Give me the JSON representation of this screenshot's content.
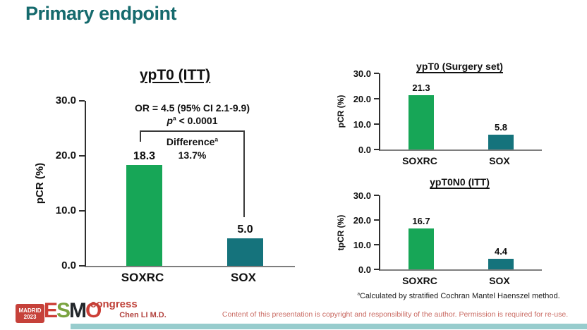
{
  "slide": {
    "title": "Primary endpoint",
    "author": "Chen LI M.D.",
    "copyright": "Content of this presentation is copyright and responsibility of the author. Permission is required for re-use.",
    "footnote_sup": "a",
    "footnote_text": "Calculated by stratified Cochran Mantel Haenszel method.",
    "logo": {
      "location": "MADRID",
      "year": "2023",
      "letters": [
        "E",
        "S",
        "M",
        "O"
      ],
      "congress": "congress"
    }
  },
  "colors": {
    "title_teal": "#156a6d",
    "bar_soxrc_green": "#17a657",
    "bar_sox_teal": "#15737c",
    "red_text": "#b2423e",
    "copyright_red": "#c96a62",
    "bottom_bar_teal": "#2f9a9c"
  },
  "annotation": {
    "or_line": "OR = 4.5 (95% CI 2.1-9.9)",
    "p_italic": "p",
    "p_sup": "a",
    "p_value": "< 0.0001",
    "difference_label": "Difference",
    "difference_sup": "a",
    "difference_value": "13.7%"
  },
  "chart_data": [
    {
      "type": "bar",
      "title": "ypT0 (ITT)",
      "categories": [
        "SOXRC",
        "SOX"
      ],
      "values": [
        18.3,
        5.0
      ],
      "value_labels": [
        "18.3",
        "5.0"
      ],
      "ylabel": "pCR (%)",
      "ylim": [
        0,
        30
      ],
      "yticks": [
        "30.0",
        "20.0",
        "10.0",
        "0.0"
      ],
      "bar_colors": [
        "#17a657",
        "#15737c"
      ],
      "grid": false,
      "annotations": [
        "OR = 4.5 (95% CI 2.1-9.9)",
        "pᵃ < 0.0001",
        "Differenceᵃ 13.7%"
      ]
    },
    {
      "type": "bar",
      "title": "ypT0 (Surgery set)",
      "categories": [
        "SOXRC",
        "SOX"
      ],
      "values": [
        21.3,
        5.8
      ],
      "value_labels": [
        "21.3",
        "5.8"
      ],
      "ylabel": "pCR (%)",
      "ylim": [
        0,
        30
      ],
      "yticks": [
        "30.0",
        "20.0",
        "10.0",
        "0.0"
      ],
      "bar_colors": [
        "#17a657",
        "#15737c"
      ],
      "grid": false
    },
    {
      "type": "bar",
      "title": "ypT0N0 (ITT)",
      "categories": [
        "SOXRC",
        "SOX"
      ],
      "values": [
        16.7,
        4.4
      ],
      "value_labels": [
        "16.7",
        "4.4"
      ],
      "ylabel": "tpCR (%)",
      "ylim": [
        0,
        30
      ],
      "yticks": [
        "30.0",
        "20.0",
        "10.0",
        "0.0"
      ],
      "bar_colors": [
        "#17a657",
        "#15737c"
      ],
      "grid": false
    }
  ]
}
